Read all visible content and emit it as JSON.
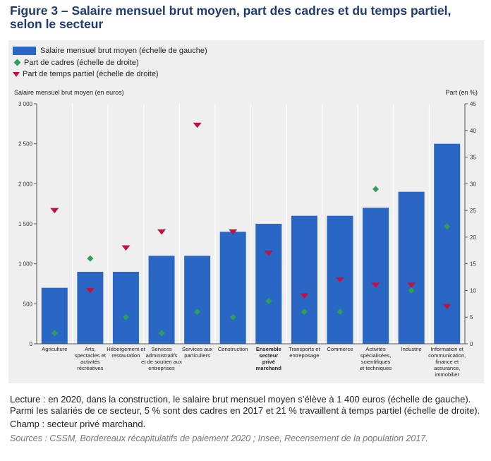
{
  "title": "Figure 3 – Salaire mensuel brut moyen, part des cadres et du temps partiel, selon le secteur",
  "legend": {
    "bar": "Salaire mensuel brut moyen (échelle de gauche)",
    "cadres": "Part de cadres (échelle de droite)",
    "partiel": "Part de temps partiel (échelle de droite)"
  },
  "axis": {
    "left_title": "Salaire mensuel brut moyen (en euros)",
    "right_title": "Part (en %)"
  },
  "colors": {
    "bar": "#2a66c4",
    "cadres": "#2e9e5b",
    "partiel": "#c4103c",
    "panel": "#efefef"
  },
  "chart_data": {
    "type": "bar",
    "categories": [
      [
        "Agriculture"
      ],
      [
        "Arts,",
        "spectacles et",
        "activités",
        "récréatives"
      ],
      [
        "Hébergement et",
        "restauration"
      ],
      [
        "Services",
        "administratifs",
        "et de soutien aux",
        "entreprises"
      ],
      [
        "Services aux",
        "particuliers"
      ],
      [
        "Construction"
      ],
      [
        "Ensemble",
        "secteur",
        "privé",
        "marchand"
      ],
      [
        "Transports et",
        "entreposage"
      ],
      [
        "Commerce"
      ],
      [
        "Activités",
        "spécialisées,",
        "scientifiques",
        "et techniques"
      ],
      [
        "Industrie"
      ],
      [
        "Information et",
        "communication,",
        "finance et",
        "assurance,",
        "immobilier"
      ]
    ],
    "bold_category_index": 6,
    "series": [
      {
        "name": "Salaire mensuel brut moyen (échelle de gauche)",
        "axis": "left",
        "values": [
          700,
          900,
          900,
          1100,
          1100,
          1400,
          1500,
          1600,
          1600,
          1700,
          1900,
          2500
        ]
      },
      {
        "name": "Part de cadres (échelle de droite)",
        "axis": "right",
        "values": [
          2,
          16,
          5,
          2,
          6,
          5,
          8,
          6,
          6,
          29,
          10,
          22
        ]
      },
      {
        "name": "Part de temps partiel (échelle de droite)",
        "axis": "right",
        "values": [
          25,
          10,
          18,
          21,
          41,
          21,
          17,
          9,
          12,
          11,
          11,
          7
        ]
      }
    ],
    "ylim_left": [
      0,
      3000
    ],
    "yticks_left": [
      "0",
      "500",
      "1 000",
      "1 500",
      "2 000",
      "2 500",
      "3 000"
    ],
    "ylim_right": [
      0,
      45
    ],
    "yticks_right": [
      "0",
      "5",
      "10",
      "15",
      "20",
      "25",
      "30",
      "35",
      "40",
      "45"
    ],
    "grid": "vertical",
    "legend_position": "top-left"
  },
  "notes": {
    "lecture": "Lecture : en 2020, dans la construction, le salaire brut mensuel moyen s’élève à 1 400 euros (échelle de gauche). Parmi les salariés de ce secteur, 5 % sont des cadres en 2017 et 21 % travaillent à temps partiel (échelle de droite).",
    "champ": "Champ : secteur privé marchand.",
    "sources": "Sources : CSSM, Bordereaux récapitulatifs de paiement 2020 ; Insee, Recensement de la population 2017."
  }
}
